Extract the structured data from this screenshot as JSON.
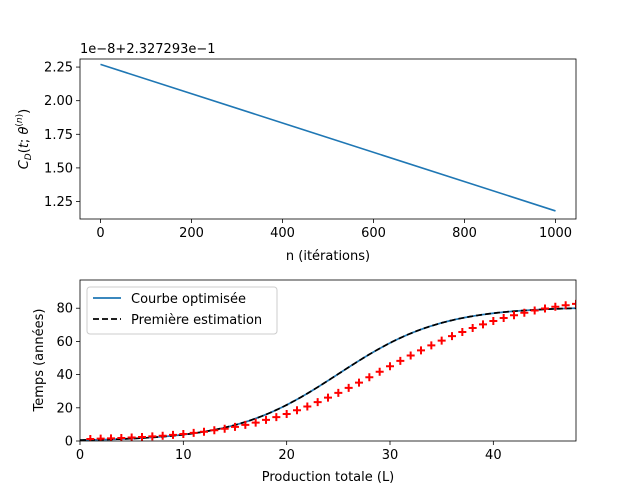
{
  "chart_data": [
    {
      "type": "line",
      "offset_label": "1e−8+2.327293e−1",
      "xlabel": "n (itérations)",
      "ylabel": "C_D(t; θ^(n))",
      "xlim": [
        -45,
        1045
      ],
      "ylim": [
        1.12,
        2.31
      ],
      "xticks": [
        0,
        200,
        400,
        600,
        800,
        1000
      ],
      "yticks": [
        1.25,
        1.5,
        1.75,
        2.0,
        2.25
      ],
      "ytick_labels": [
        "1.25",
        "1.50",
        "1.75",
        "2.00",
        "2.25"
      ],
      "grid": false,
      "series": [
        {
          "color": "#1f77b4",
          "x": [
            0,
            1000
          ],
          "y": [
            2.27,
            1.18
          ]
        }
      ]
    },
    {
      "type": "line",
      "xlabel": "Production totale (L)",
      "ylabel": "Temps (années)",
      "xlim": [
        0,
        48
      ],
      "ylim": [
        0,
        97
      ],
      "xticks": [
        0,
        10,
        20,
        30,
        40
      ],
      "yticks": [
        0,
        20,
        40,
        60,
        80
      ],
      "grid": false,
      "legend_position": "upper-left",
      "series": [
        {
          "name": "Courbe optimisée",
          "color": "#1f77b4",
          "style": "solid",
          "logistic": {
            "K": 80.8,
            "k": 0.2,
            "x0": 25
          }
        },
        {
          "name": "Première estimation",
          "color": "#000000",
          "style": "dashed",
          "logistic": {
            "K": 80.8,
            "k": 0.2,
            "x0": 25
          }
        },
        {
          "color": "#ff0000",
          "style": "marker-plus",
          "x": [
            1,
            2,
            3,
            4,
            5,
            6,
            7,
            8,
            9,
            10,
            11,
            12,
            13,
            14,
            15,
            16,
            17,
            18,
            19,
            20,
            21,
            22,
            23,
            24,
            25,
            26,
            27,
            28,
            29,
            30,
            31,
            32,
            33,
            34,
            35,
            36,
            37,
            38,
            39,
            40,
            41,
            42,
            43,
            44,
            45,
            46,
            47,
            48
          ],
          "y": [
            1.2,
            1.4,
            1.6,
            1.8,
            2.1,
            2.4,
            2.8,
            3.2,
            3.7,
            4.2,
            4.9,
            5.6,
            6.5,
            7.4,
            8.5,
            9.7,
            11.1,
            12.7,
            14.4,
            16.3,
            18.5,
            20.8,
            23.4,
            26.1,
            29.0,
            32.0,
            35.2,
            38.4,
            41.7,
            45.0,
            48.3,
            51.5,
            54.6,
            57.6,
            60.5,
            63.2,
            65.7,
            68.1,
            70.3,
            72.3,
            74.1,
            75.8,
            77.3,
            78.6,
            79.8,
            80.9,
            81.8,
            82.6
          ]
        }
      ]
    }
  ]
}
